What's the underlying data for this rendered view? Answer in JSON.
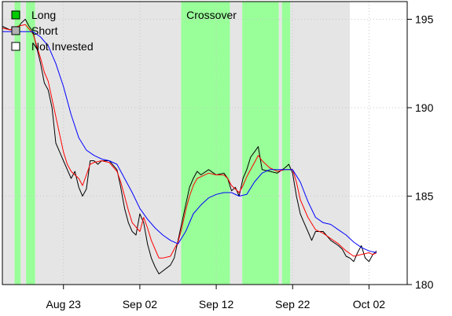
{
  "chart_data": {
    "type": "line",
    "title": "Crossover",
    "xlabel": "",
    "ylabel": "",
    "x_range": [
      0,
      53
    ],
    "ylim": [
      180,
      196
    ],
    "yticks": [
      180,
      185,
      190,
      195
    ],
    "y_axis_side": "right",
    "xticks": [
      {
        "label": "Aug 23",
        "x": 8
      },
      {
        "label": "Sep 02",
        "x": 18
      },
      {
        "label": "Sep 12",
        "x": 28
      },
      {
        "label": "Sep 22",
        "x": 38
      },
      {
        "label": "Oct 02",
        "x": 48
      }
    ],
    "grid": true,
    "legend": {
      "placement": "top-left",
      "entries": [
        {
          "label": "Long",
          "color": "#00cc00"
        },
        {
          "label": "Short",
          "color": "#b3b3b3"
        },
        {
          "label": "Not Invested",
          "color": "#ffffff"
        }
      ]
    },
    "regimes": [
      {
        "from": 0.0,
        "to": 1.6,
        "state": "Short"
      },
      {
        "from": 1.6,
        "to": 2.4,
        "state": "Long"
      },
      {
        "from": 2.4,
        "to": 3.1,
        "state": "Short"
      },
      {
        "from": 3.1,
        "to": 4.3,
        "state": "Long"
      },
      {
        "from": 4.3,
        "to": 23.4,
        "state": "Short"
      },
      {
        "from": 23.4,
        "to": 29.8,
        "state": "Long"
      },
      {
        "from": 29.8,
        "to": 31.4,
        "state": "Short"
      },
      {
        "from": 31.4,
        "to": 36.2,
        "state": "Long"
      },
      {
        "from": 36.2,
        "to": 36.6,
        "state": "Short"
      },
      {
        "from": 36.6,
        "to": 37.7,
        "state": "Long"
      },
      {
        "from": 37.7,
        "to": 45.5,
        "state": "Short"
      },
      {
        "from": 45.5,
        "to": 53.0,
        "state": "Not Invested"
      }
    ],
    "series": [
      {
        "name": "",
        "color": "#000000",
        "x": [
          0.0,
          1.0,
          2.0,
          2.5,
          3.0,
          3.5,
          4.0,
          5.0,
          5.5,
          6.0,
          6.5,
          7.0,
          7.5,
          8.0,
          8.5,
          9.0,
          9.5,
          10.0,
          10.5,
          11.0,
          11.5,
          12.0,
          12.5,
          13.0,
          14.0,
          15.0,
          15.5,
          16.0,
          16.5,
          17.0,
          17.5,
          18.0,
          18.5,
          19.0,
          19.5,
          20.0,
          20.5,
          22.0,
          22.5,
          23.0,
          23.5,
          24.0,
          24.5,
          25.0,
          25.5,
          26.0,
          27.0,
          28.0,
          29.0,
          29.5,
          30.0,
          30.5,
          31.0,
          31.5,
          32.0,
          32.5,
          33.0,
          33.5,
          34.0,
          35.0,
          36.0,
          37.0,
          37.5,
          38.0,
          38.5,
          39.0,
          39.5,
          40.0,
          40.5,
          41.0,
          42.0,
          43.0,
          44.0,
          44.5,
          45.0,
          45.5,
          46.0,
          46.5,
          47.0,
          47.5,
          48.0,
          48.5,
          49.0
        ],
        "values": [
          194.6,
          194.4,
          194.5,
          194.8,
          195.0,
          194.6,
          194.3,
          192.5,
          191.4,
          191.0,
          190.0,
          188.0,
          187.5,
          187.0,
          186.5,
          186.0,
          186.4,
          185.5,
          185.0,
          185.4,
          187.0,
          187.0,
          186.8,
          187.0,
          187.0,
          186.5,
          185.5,
          184.3,
          183.5,
          183.0,
          182.8,
          184.0,
          183.5,
          182.3,
          181.5,
          181.0,
          180.6,
          181.1,
          181.5,
          182.5,
          183.5,
          184.5,
          185.5,
          186.0,
          186.4,
          186.2,
          186.5,
          186.2,
          186.3,
          186.0,
          185.3,
          185.5,
          185.0,
          186.0,
          186.5,
          187.2,
          187.5,
          187.8,
          186.5,
          186.4,
          186.3,
          186.6,
          186.8,
          186.3,
          185.0,
          184.0,
          183.5,
          183.0,
          182.5,
          183.0,
          183.0,
          182.5,
          182.2,
          182.0,
          181.6,
          181.5,
          181.3,
          181.8,
          182.2,
          181.5,
          181.3,
          181.7,
          181.9
        ]
      },
      {
        "name": "",
        "color": "#ff0000",
        "x": [
          0.0,
          1.0,
          2.0,
          3.0,
          4.0,
          5.0,
          5.5,
          6.0,
          7.0,
          8.0,
          8.5,
          9.0,
          9.5,
          10.0,
          10.5,
          11.0,
          11.5,
          12.0,
          13.0,
          14.0,
          15.0,
          15.5,
          16.0,
          16.5,
          17.0,
          18.0,
          18.5,
          19.0,
          19.5,
          20.0,
          20.5,
          21.0,
          22.0,
          23.0,
          23.5,
          24.0,
          24.5,
          25.0,
          25.5,
          26.0,
          27.0,
          28.0,
          29.0,
          29.5,
          30.0,
          30.5,
          31.0,
          31.5,
          32.0,
          33.0,
          33.5,
          34.0,
          35.0,
          36.0,
          37.0,
          38.0,
          38.5,
          39.0,
          40.0,
          41.0,
          42.0,
          43.0,
          44.0,
          45.0,
          46.0,
          47.0,
          48.0,
          48.5,
          49.0
        ],
        "values": [
          194.5,
          194.4,
          194.6,
          194.7,
          194.2,
          192.8,
          192.0,
          191.5,
          189.5,
          187.5,
          186.8,
          186.4,
          186.2,
          186.0,
          185.6,
          186.2,
          186.8,
          186.9,
          187.0,
          186.9,
          186.4,
          185.8,
          185.0,
          184.2,
          183.5,
          183.0,
          183.8,
          183.2,
          182.5,
          182.0,
          181.5,
          181.5,
          181.6,
          182.4,
          183.2,
          184.2,
          185.0,
          185.6,
          186.0,
          186.1,
          186.3,
          186.2,
          186.2,
          186.0,
          185.6,
          185.4,
          185.2,
          185.6,
          186.1,
          186.9,
          187.3,
          187.0,
          186.6,
          186.4,
          186.5,
          186.5,
          185.8,
          184.8,
          183.8,
          183.1,
          182.9,
          182.6,
          182.3,
          181.9,
          181.6,
          181.7,
          181.8,
          181.7,
          181.8
        ]
      },
      {
        "name": "",
        "color": "#0000ff",
        "x": [
          0.0,
          2.0,
          4.0,
          5.0,
          6.0,
          7.0,
          8.0,
          9.0,
          10.0,
          11.0,
          12.0,
          13.0,
          14.0,
          15.0,
          16.0,
          17.0,
          18.0,
          19.0,
          20.0,
          21.0,
          22.0,
          23.0,
          24.0,
          25.0,
          26.0,
          27.0,
          28.0,
          29.0,
          30.0,
          31.0,
          32.0,
          33.0,
          34.0,
          35.0,
          36.0,
          37.0,
          38.0,
          39.0,
          40.0,
          41.0,
          42.0,
          43.0,
          44.0,
          45.0,
          46.0,
          47.0,
          48.0,
          49.0
        ],
        "values": [
          194.3,
          194.3,
          194.3,
          194.0,
          193.5,
          192.5,
          191.2,
          189.6,
          188.3,
          187.6,
          187.3,
          187.1,
          187.0,
          186.8,
          186.0,
          185.2,
          184.3,
          183.7,
          183.2,
          182.8,
          182.5,
          182.3,
          183.0,
          184.0,
          184.5,
          184.9,
          185.1,
          185.2,
          185.2,
          185.0,
          185.1,
          185.8,
          186.3,
          186.5,
          186.5,
          186.5,
          186.5,
          185.8,
          184.7,
          183.8,
          183.5,
          183.4,
          183.1,
          182.8,
          182.4,
          182.1,
          181.9,
          181.8
        ]
      }
    ]
  }
}
